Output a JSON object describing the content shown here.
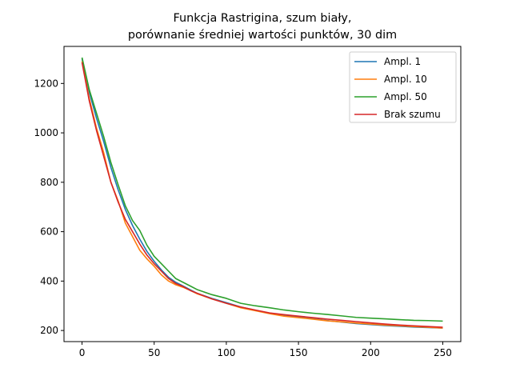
{
  "chart_data": {
    "type": "line",
    "title": "Funkcja Rastrigina, szum biały,",
    "subtitle": "porównanie średniej wartości punktów, 30 dim",
    "xlabel": "",
    "ylabel": "",
    "xlim": [
      -12.5,
      262.5
    ],
    "ylim": [
      155,
      1350
    ],
    "xticks": [
      0,
      50,
      100,
      150,
      200,
      250
    ],
    "yticks": [
      200,
      400,
      600,
      800,
      1000,
      1200
    ],
    "grid": false,
    "legend_position": "top-right",
    "x": [
      0,
      5,
      10,
      15,
      20,
      25,
      30,
      35,
      40,
      45,
      50,
      55,
      60,
      65,
      70,
      75,
      80,
      90,
      100,
      110,
      120,
      130,
      140,
      150,
      160,
      170,
      180,
      190,
      200,
      210,
      220,
      230,
      240,
      250
    ],
    "series": [
      {
        "name": "Ampl. 1",
        "color": "#1f77b4",
        "values": [
          1300,
          1165,
          1060,
          965,
          860,
          770,
          690,
          625,
          570,
          520,
          480,
          445,
          415,
          395,
          380,
          365,
          350,
          330,
          313,
          295,
          282,
          270,
          262,
          256,
          248,
          240,
          234,
          228,
          224,
          220,
          217,
          214,
          212,
          210
        ]
      },
      {
        "name": "Ampl. 10",
        "color": "#ff7f0e",
        "values": [
          1290,
          1140,
          1020,
          920,
          800,
          725,
          635,
          580,
          525,
          490,
          460,
          425,
          400,
          385,
          375,
          362,
          348,
          328,
          310,
          292,
          280,
          268,
          258,
          252,
          246,
          239,
          235,
          230,
          226,
          222,
          219,
          216,
          213,
          210
        ]
      },
      {
        "name": "Ampl. 50",
        "color": "#2ca02c",
        "values": [
          1305,
          1175,
          1080,
          985,
          880,
          790,
          705,
          645,
          605,
          545,
          500,
          470,
          440,
          410,
          395,
          380,
          365,
          345,
          330,
          310,
          300,
          292,
          283,
          276,
          270,
          265,
          259,
          253,
          250,
          247,
          244,
          241,
          240,
          238
        ]
      },
      {
        "name": "Brak szumu",
        "color": "#d62728",
        "values": [
          1285,
          1130,
          1010,
          905,
          800,
          720,
          650,
          600,
          550,
          505,
          470,
          440,
          410,
          390,
          378,
          362,
          350,
          328,
          310,
          295,
          283,
          271,
          264,
          258,
          252,
          246,
          241,
          236,
          231,
          226,
          222,
          219,
          216,
          213
        ]
      }
    ]
  }
}
